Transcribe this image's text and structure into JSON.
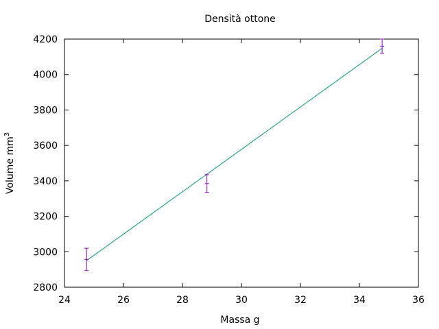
{
  "chart_data": {
    "type": "scatter",
    "title": "Densità ottone",
    "xlabel": "Massa g",
    "ylabel": "Volume mm",
    "ylabel_superscript": "3",
    "xlim": [
      24,
      36
    ],
    "ylim": [
      2800,
      4200
    ],
    "xticks": [
      24,
      26,
      28,
      30,
      32,
      34,
      36
    ],
    "yticks": [
      2800,
      3000,
      3200,
      3400,
      3600,
      3800,
      4000,
      4200
    ],
    "grid": false,
    "legend": "none",
    "series": [
      {
        "kind": "points-with-y-errorbars",
        "color": "#9400d3",
        "points": [
          {
            "x": 24.75,
            "y": 2957,
            "yerr": 63
          },
          {
            "x": 28.83,
            "y": 3385,
            "yerr": 50
          },
          {
            "x": 34.77,
            "y": 4160,
            "yerr": 40
          }
        ]
      },
      {
        "kind": "fit-line",
        "color": "#009e73",
        "x": [
          24.75,
          34.77
        ],
        "y": [
          2950,
          4148
        ]
      }
    ]
  }
}
